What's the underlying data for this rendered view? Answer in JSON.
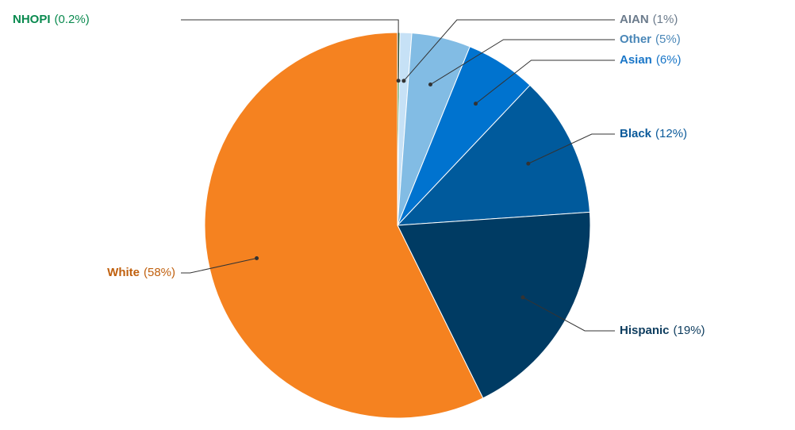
{
  "chart_data": {
    "type": "pie",
    "categories": [
      "NHOPI",
      "AIAN",
      "Other",
      "Asian",
      "Black",
      "Hispanic",
      "White"
    ],
    "values": [
      0.2,
      1,
      5,
      6,
      12,
      19,
      58
    ],
    "value_labels": [
      "(0.2%)",
      "(1%)",
      "(5%)",
      "(6%)",
      "(12%)",
      "(19%)",
      "(58%)"
    ],
    "colors": [
      "#3a8a3e",
      "#c6e1f6",
      "#82bce4",
      "#0073cf",
      "#005a9c",
      "#003b63",
      "#f58220"
    ],
    "label_colors": [
      "#0a8a4f",
      "#6b7b8c",
      "#4a87b8",
      "#1976c8",
      "#0b5a9a",
      "#0d3c5e",
      "#c0600e"
    ]
  }
}
